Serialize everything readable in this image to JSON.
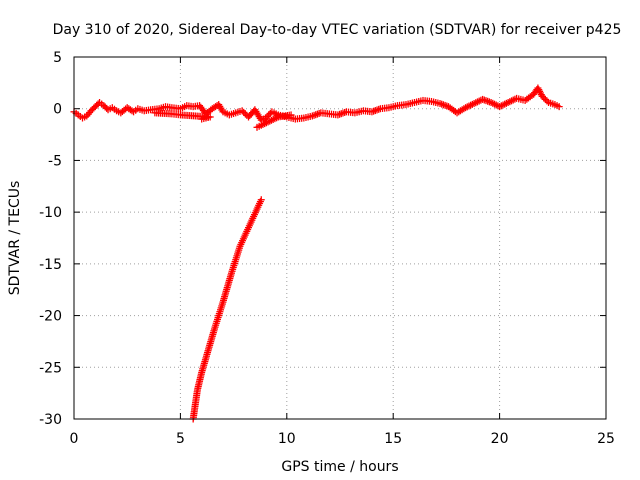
{
  "chart_data": {
    "type": "scatter",
    "title": "Day 310 of 2020, Sidereal Day-to-day VTEC variation (SDTVAR) for receiver p425",
    "xlabel": "GPS time / hours",
    "ylabel": "SDTVAR / TECUs",
    "xlim": [
      0,
      25
    ],
    "ylim": [
      -30,
      5
    ],
    "xticks": [
      0,
      5,
      10,
      15,
      20,
      25
    ],
    "yticks": [
      5,
      0,
      -5,
      -10,
      -15,
      -20,
      -25,
      -30
    ],
    "grid": true,
    "colors": {
      "series": "#ff0000",
      "grid": "#a0a0a0",
      "frame": "#000000"
    },
    "series": [
      {
        "marker": "plus",
        "points": [
          [
            0.0,
            -0.3
          ],
          [
            0.2,
            -0.6
          ],
          [
            0.4,
            -0.9
          ],
          [
            0.6,
            -0.7
          ],
          [
            0.8,
            -0.2
          ],
          [
            1.0,
            0.2
          ],
          [
            1.2,
            0.6
          ],
          [
            1.4,
            0.3
          ],
          [
            1.6,
            -0.1
          ],
          [
            1.8,
            0.1
          ],
          [
            2.0,
            -0.2
          ],
          [
            2.2,
            -0.4
          ],
          [
            2.5,
            0.1
          ],
          [
            2.8,
            -0.3
          ],
          [
            3.0,
            0.0
          ],
          [
            3.3,
            -0.2
          ],
          [
            3.6,
            -0.1
          ],
          [
            4.0,
            0.0
          ],
          [
            4.3,
            0.2
          ],
          [
            4.6,
            0.1
          ],
          [
            5.0,
            0.0
          ],
          [
            5.3,
            0.3
          ],
          [
            5.6,
            0.2
          ],
          [
            5.9,
            0.3
          ],
          [
            6.2,
            -0.5
          ],
          [
            6.5,
            0.0
          ],
          [
            6.8,
            0.4
          ],
          [
            7.0,
            -0.3
          ],
          [
            7.3,
            -0.6
          ],
          [
            7.6,
            -0.4
          ],
          [
            7.9,
            -0.2
          ],
          [
            8.2,
            -0.8
          ],
          [
            8.5,
            -0.1
          ],
          [
            8.8,
            -1.1
          ],
          [
            9.0,
            -0.9
          ],
          [
            9.3,
            -0.3
          ],
          [
            9.6,
            -0.6
          ],
          [
            10.0,
            -0.8
          ],
          [
            10.4,
            -1.0
          ],
          [
            10.8,
            -0.9
          ],
          [
            11.2,
            -0.7
          ],
          [
            11.6,
            -0.4
          ],
          [
            12.0,
            -0.5
          ],
          [
            12.4,
            -0.6
          ],
          [
            12.8,
            -0.3
          ],
          [
            13.2,
            -0.4
          ],
          [
            13.6,
            -0.2
          ],
          [
            14.0,
            -0.3
          ],
          [
            14.4,
            0.0
          ],
          [
            14.8,
            0.1
          ],
          [
            15.2,
            0.3
          ],
          [
            15.6,
            0.4
          ],
          [
            16.0,
            0.6
          ],
          [
            16.4,
            0.8
          ],
          [
            16.8,
            0.7
          ],
          [
            17.2,
            0.5
          ],
          [
            17.6,
            0.2
          ],
          [
            18.0,
            -0.4
          ],
          [
            18.4,
            0.1
          ],
          [
            18.8,
            0.5
          ],
          [
            19.2,
            0.9
          ],
          [
            19.6,
            0.6
          ],
          [
            20.0,
            0.2
          ],
          [
            20.4,
            0.6
          ],
          [
            20.8,
            1.0
          ],
          [
            21.2,
            0.8
          ],
          [
            21.6,
            1.4
          ],
          [
            21.8,
            2.0
          ],
          [
            22.0,
            1.2
          ],
          [
            22.3,
            0.6
          ],
          [
            22.6,
            0.4
          ],
          [
            22.8,
            0.2
          ],
          [
            8.6,
            -1.8
          ],
          [
            8.8,
            -1.6
          ],
          [
            9.2,
            -1.2
          ],
          [
            9.6,
            -0.8
          ],
          [
            10.2,
            -0.6
          ],
          [
            6.0,
            -1.0
          ],
          [
            6.4,
            -0.8
          ],
          [
            5.0,
            -0.6
          ],
          [
            4.6,
            -0.5
          ],
          [
            3.8,
            -0.4
          ],
          [
            8.8,
            -8.8
          ],
          [
            8.6,
            -9.7
          ],
          [
            8.4,
            -10.6
          ],
          [
            8.2,
            -11.5
          ],
          [
            8.0,
            -12.4
          ],
          [
            7.8,
            -13.3
          ],
          [
            7.6,
            -14.6
          ],
          [
            7.4,
            -15.9
          ],
          [
            7.2,
            -17.3
          ],
          [
            7.0,
            -18.7
          ],
          [
            6.8,
            -20.0
          ],
          [
            6.6,
            -21.3
          ],
          [
            6.4,
            -22.7
          ],
          [
            6.2,
            -24.1
          ],
          [
            6.0,
            -25.5
          ],
          [
            5.8,
            -27.2
          ],
          [
            5.7,
            -28.6
          ],
          [
            5.6,
            -30.0
          ]
        ]
      }
    ]
  }
}
